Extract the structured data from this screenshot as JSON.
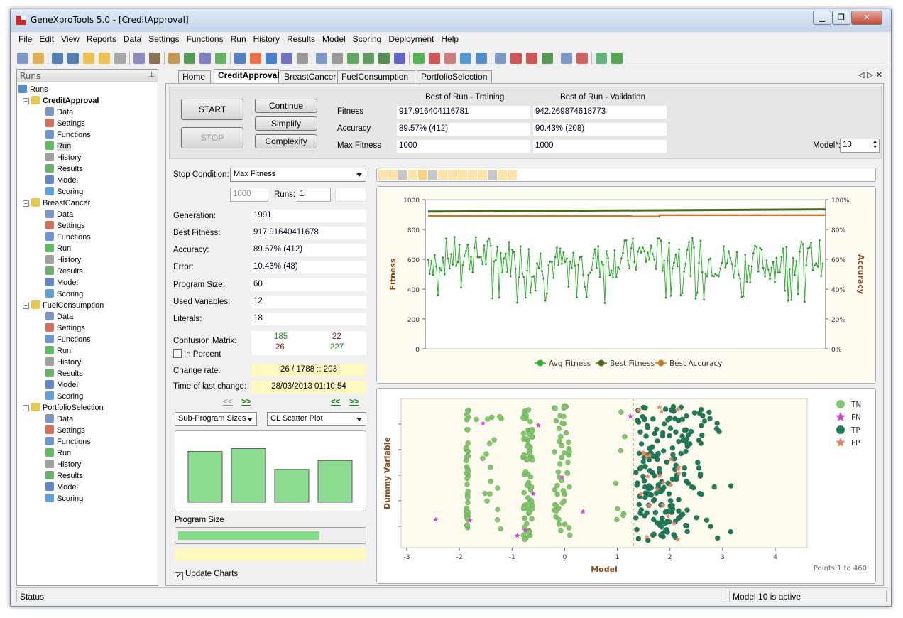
{
  "window": {
    "title": "GeneXproTools 5.0 - [CreditApproval]"
  },
  "menu": [
    "File",
    "Edit",
    "View",
    "Reports",
    "Data",
    "Settings",
    "Functions",
    "Run",
    "History",
    "Results",
    "Model",
    "Scoring",
    "Deployment",
    "Help"
  ],
  "left_panel": {
    "header": "Runs",
    "root": "Runs",
    "runs": [
      {
        "name": "CreditApproval",
        "active": true,
        "items": [
          "Data",
          "Settings",
          "Functions",
          "Run",
          "History",
          "Results",
          "Model",
          "Scoring"
        ]
      },
      {
        "name": "BreastCancer",
        "active": false,
        "items": [
          "Data",
          "Settings",
          "Functions",
          "Run",
          "History",
          "Results",
          "Model",
          "Scoring"
        ]
      },
      {
        "name": "FuelConsumption",
        "active": false,
        "items": [
          "Data",
          "Settings",
          "Functions",
          "Run",
          "History",
          "Results",
          "Model",
          "Scoring"
        ]
      },
      {
        "name": "PortfolioSelection",
        "active": false,
        "items": [
          "Data",
          "Settings",
          "Functions",
          "Run",
          "History",
          "Results",
          "Model",
          "Scoring"
        ]
      }
    ]
  },
  "tabs": [
    "Home",
    "CreditApproval",
    "BreastCancer",
    "FuelConsumption",
    "PortfolioSelection"
  ],
  "run_panel": {
    "start": "START",
    "stop": "STOP",
    "continue": "Continue",
    "simplify": "Simplify",
    "complexify": "Complexify",
    "col_training": "Best of Run - Training",
    "col_validation": "Best of Run - Validation",
    "row_fitness": "Fitness",
    "row_accuracy": "Accuracy",
    "row_maxfitness": "Max Fitness",
    "fit_train": "917.916404116781",
    "fit_val": "942.269874618773",
    "acc_train": "89.57% (412)",
    "acc_val": "90.43% (208)",
    "max_train": "1000",
    "max_val": "1000",
    "model_label": "Model*:",
    "model_value": "10"
  },
  "stats": {
    "stop_condition_label": "Stop Condition:",
    "stop_condition": "Max Fitness",
    "max_fitness_input": "1000",
    "runs_label": "Runs:",
    "runs_value": "1",
    "generation_label": "Generation:",
    "generation": "1991",
    "best_fitness_label": "Best Fitness:",
    "best_fitness": "917.91640411678",
    "accuracy_label": "Accuracy:",
    "accuracy": "89.57% (412)",
    "error_label": "Error:",
    "error": "10.43% (48)",
    "program_size_label": "Program Size:",
    "program_size": "60",
    "used_vars_label": "Used Variables:",
    "used_vars": "12",
    "literals_label": "Literals:",
    "literals": "18",
    "confusion_label": "Confusion Matrix:",
    "cm_tp": "185",
    "cm_fp": "22",
    "cm_fn": "26",
    "cm_tn": "227",
    "in_percent": "In Percent",
    "change_rate_label": "Change rate:",
    "change_rate": "26 / 1788 :: 203",
    "last_change_label": "Time of last change:",
    "last_change": "28/03/2013 01:10:54",
    "nav_prev": "<<",
    "nav_next": ">>",
    "chart_select_left": "Sub-Program Sizes",
    "chart_select_right": "CL Scatter Plot",
    "program_size_title": "Program Size",
    "program_size_fill": 0.76,
    "update_charts": "Update Charts"
  },
  "colors": {
    "green_line": "#33b233",
    "dark_green": "#4a6b1e",
    "orange": "#c87a2a",
    "tn": "#7ec86a",
    "fn": "#cc44cc",
    "tp": "#1f7a5a",
    "fp": "#f08060"
  },
  "chart_data": [
    {
      "type": "line",
      "title": "",
      "ylabel": "Fitness",
      "y2label": "Accuracy",
      "ylim": [
        0,
        1000
      ],
      "y2lim": [
        0,
        100
      ],
      "yticks": [
        "0",
        "200",
        "400",
        "600",
        "800",
        "1000"
      ],
      "y2ticks": [
        "0%",
        "20%",
        "40%",
        "60%",
        "80%",
        "100%"
      ],
      "series": [
        {
          "name": "Avg Fitness",
          "mean": 600,
          "spread": [
            300,
            780
          ]
        },
        {
          "name": "Best Fitness",
          "values_start": 920,
          "values_end": 935
        },
        {
          "name": "Best Accuracy",
          "values_start": 89,
          "values_end": 89.6
        }
      ]
    },
    {
      "type": "scatter",
      "xlabel": "Model",
      "ylabel": "Dummy Variable",
      "xlim": [
        -3,
        4.5
      ],
      "xticks": [
        "-3",
        "-2",
        "-1",
        "0",
        "1",
        "2",
        "3",
        "4"
      ],
      "threshold": 1.3,
      "legend": [
        "TN",
        "FN",
        "TP",
        "FP"
      ],
      "footer": "Points 1 to 460"
    },
    {
      "type": "bar",
      "title": "Program Size",
      "values": [
        17,
        18,
        11,
        14
      ]
    }
  ],
  "palette": {
    "swatches": [
      "#fde3a8",
      "#fde3a8",
      "#c8c8c8",
      "#fde3a8",
      "#fbd28a",
      "#c8c8c8",
      "#fde3a8",
      "#fde3a8",
      "#fde3a8",
      "#fde3a8",
      "#fde3a8",
      "#c8c8c8",
      "#fde3a8",
      "#fde3a8"
    ]
  },
  "status": {
    "left": "Status",
    "right": "Model 10 is active"
  }
}
